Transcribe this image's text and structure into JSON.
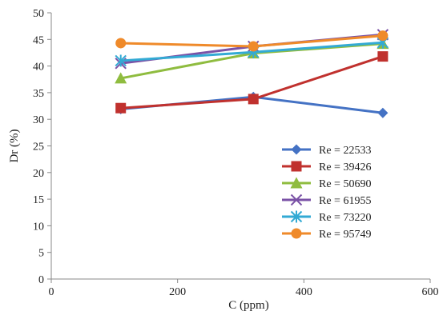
{
  "chart_data": {
    "type": "line",
    "xlabel": "C (ppm)",
    "ylabel": "Dr (%)",
    "xlim": [
      0,
      600
    ],
    "ylim": [
      0,
      50
    ],
    "xticks": [
      0,
      200,
      400,
      600
    ],
    "yticks": [
      0,
      5,
      10,
      15,
      20,
      25,
      30,
      35,
      40,
      45,
      50
    ],
    "x": [
      110,
      320,
      525
    ],
    "legend_position": "center-right",
    "grid": false,
    "series": [
      {
        "name": "Re = 22533",
        "values": [
          31.9,
          34.2,
          31.2
        ],
        "color": "#4472c4",
        "marker": "diamond"
      },
      {
        "name": "Re = 39426",
        "values": [
          32.1,
          33.8,
          41.8
        ],
        "color": "#c0312e",
        "marker": "square"
      },
      {
        "name": "Re = 50690",
        "values": [
          37.7,
          42.4,
          44.2
        ],
        "color": "#8fbc3f",
        "marker": "triangle"
      },
      {
        "name": "Re = 61955",
        "values": [
          40.5,
          43.7,
          45.9
        ],
        "color": "#7a52a6",
        "marker": "x"
      },
      {
        "name": "Re = 73220",
        "values": [
          41.0,
          42.6,
          44.4
        ],
        "color": "#33aad4",
        "marker": "star"
      },
      {
        "name": "Re = 95749",
        "values": [
          44.3,
          43.7,
          45.7
        ],
        "color": "#ef8a2a",
        "marker": "circle"
      }
    ]
  }
}
